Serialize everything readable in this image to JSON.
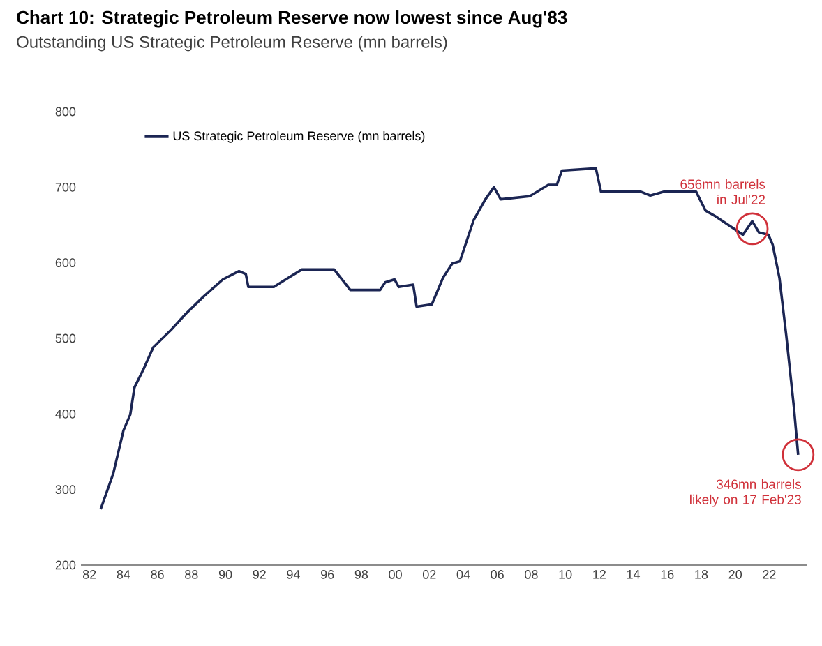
{
  "chart_data": {
    "type": "line",
    "title": "Chart 10: Strategic Petroleum Reserve now lowest since Aug'83",
    "subtitle": "Outstanding US Strategic Petroleum Reserve (mn barrels)",
    "series": [
      {
        "name": "US Strategic Petroleum Reserve (mn barrels)",
        "color": "#1b2553",
        "x": [
          1982.66,
          1983.4,
          1984.0,
          1984.4,
          1984.65,
          1985.2,
          1985.75,
          1986.8,
          1987.65,
          1988.7,
          1989.85,
          1990.8,
          1991.2,
          1991.35,
          1992.85,
          1993.7,
          1994.5,
          1996.4,
          1997.35,
          1999.1,
          1999.4,
          1999.95,
          2000.2,
          2001.05,
          2001.25,
          2002.15,
          2002.8,
          2003.35,
          2003.8,
          2004.6,
          2005.3,
          2005.8,
          2006.2,
          2007.9,
          2009.0,
          2009.5,
          2009.8,
          2011.8,
          2012.1,
          2014.45,
          2015.0,
          2015.8,
          2017.7,
          2018.25,
          2018.8,
          2019.6,
          2020.45,
          2021.0,
          2021.4,
          2021.95,
          2022.2,
          2022.6,
          2023.0,
          2023.45,
          2023.7
        ],
        "values": [
          274,
          321,
          378,
          399,
          435,
          460,
          488,
          511,
          532,
          555,
          578,
          589,
          585,
          568,
          568,
          580,
          591,
          591,
          564,
          564,
          574,
          578,
          568,
          571,
          542,
          545,
          580,
          599,
          602,
          656,
          684,
          700,
          684,
          688,
          703,
          703,
          722,
          725,
          694,
          694,
          689,
          694,
          694,
          669,
          662,
          650,
          637,
          655,
          640,
          637,
          624,
          580,
          504,
          409,
          346
        ]
      }
    ],
    "xlim": [
      1981.5,
      2024.2
    ],
    "ylim": [
      200,
      800
    ],
    "xticks": [
      {
        "value": 1982,
        "label": "82"
      },
      {
        "value": 1984,
        "label": "84"
      },
      {
        "value": 1986,
        "label": "86"
      },
      {
        "value": 1988,
        "label": "88"
      },
      {
        "value": 1990,
        "label": "90"
      },
      {
        "value": 1992,
        "label": "92"
      },
      {
        "value": 1994,
        "label": "94"
      },
      {
        "value": 1996,
        "label": "96"
      },
      {
        "value": 1998,
        "label": "98"
      },
      {
        "value": 2000,
        "label": "00"
      },
      {
        "value": 2002,
        "label": "02"
      },
      {
        "value": 2004,
        "label": "04"
      },
      {
        "value": 2006,
        "label": "06"
      },
      {
        "value": 2008,
        "label": "08"
      },
      {
        "value": 2010,
        "label": "10"
      },
      {
        "value": 2012,
        "label": "12"
      },
      {
        "value": 2014,
        "label": "14"
      },
      {
        "value": 2016,
        "label": "16"
      },
      {
        "value": 2018,
        "label": "18"
      },
      {
        "value": 2020,
        "label": "20"
      },
      {
        "value": 2022,
        "label": "22"
      }
    ],
    "yticks": [
      200,
      300,
      400,
      500,
      600,
      700,
      800
    ],
    "annotations": [
      {
        "text": "656mn barrels in Jul'22",
        "x": 2021.0,
        "y": 645
      },
      {
        "text": "346mn barrels likely on 17 Feb'23",
        "x": 2023.7,
        "y": 346
      }
    ],
    "legend": "top left",
    "grid": false,
    "marker": "none",
    "line_style": "solid"
  }
}
